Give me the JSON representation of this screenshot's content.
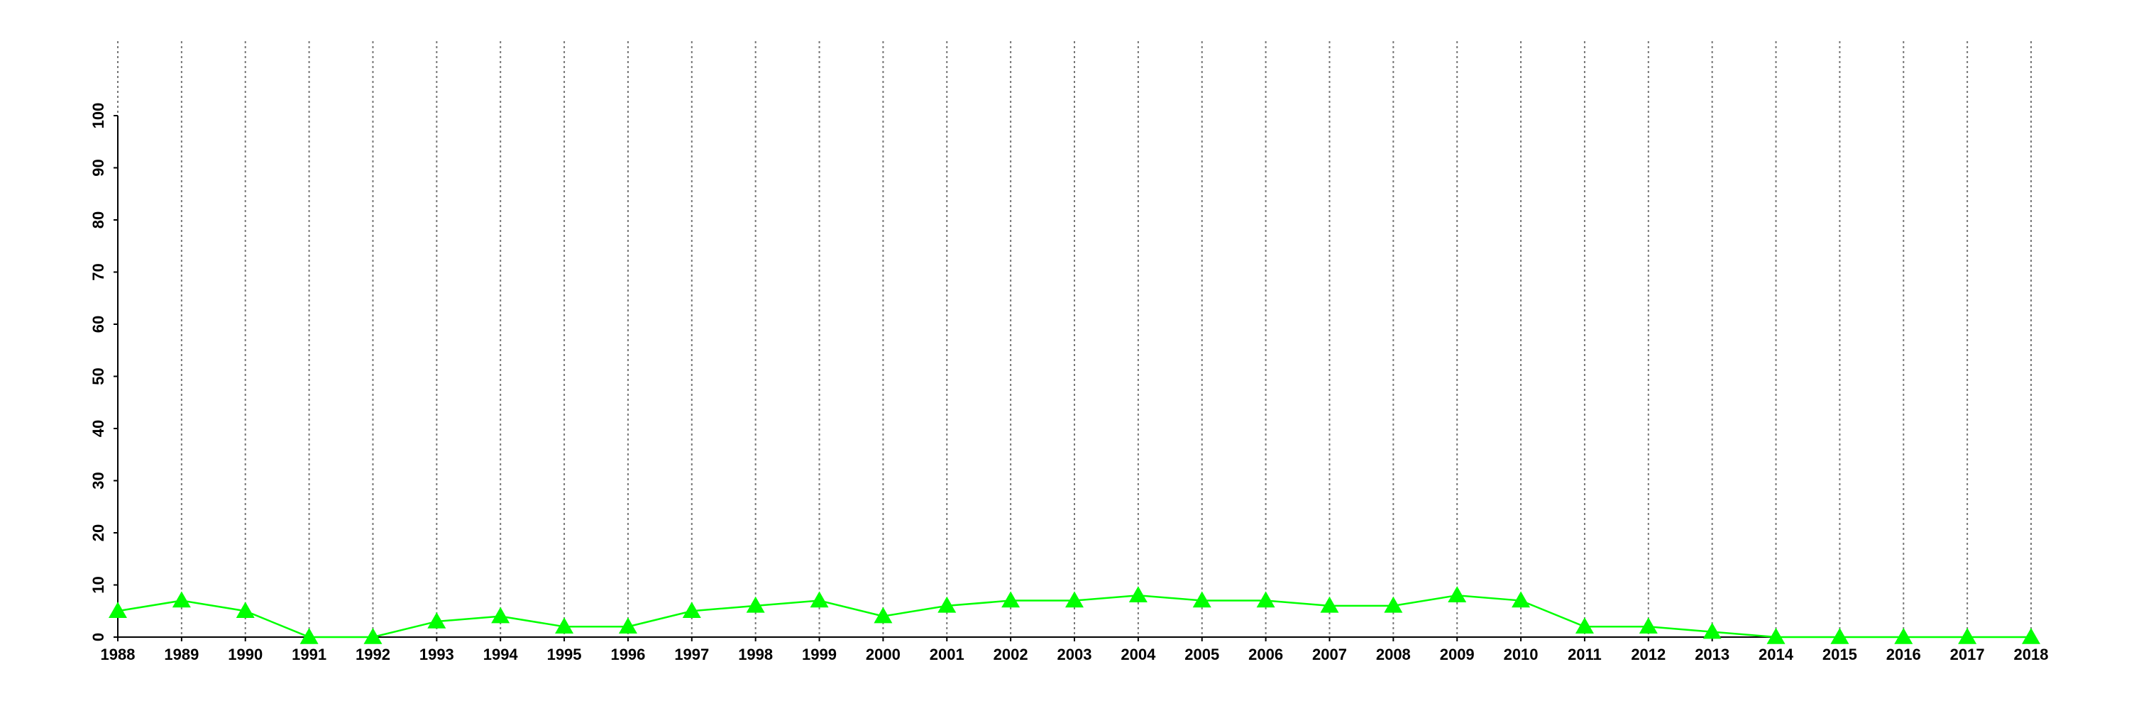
{
  "chart_data": {
    "type": "line",
    "x": [
      1988,
      1989,
      1990,
      1991,
      1992,
      1993,
      1994,
      1995,
      1996,
      1997,
      1998,
      1999,
      2000,
      2001,
      2002,
      2003,
      2004,
      2005,
      2006,
      2007,
      2008,
      2009,
      2010,
      2011,
      2012,
      2013,
      2014,
      2015,
      2016,
      2017,
      2018
    ],
    "series": [
      {
        "color": "#00ff00",
        "marker": "triangle",
        "values": [
          5,
          7,
          5,
          0,
          0,
          3,
          4,
          2,
          2,
          5,
          6,
          7,
          4,
          6,
          7,
          7,
          8,
          7,
          7,
          6,
          6,
          8,
          7,
          2,
          2,
          1,
          0,
          0,
          0,
          0,
          0
        ]
      }
    ],
    "xlim": [
      1988,
      2018
    ],
    "xticks": [
      1988,
      1989,
      1990,
      1991,
      1992,
      1993,
      1994,
      1995,
      1996,
      1997,
      1998,
      1999,
      2000,
      2001,
      2002,
      2003,
      2004,
      2005,
      2006,
      2007,
      2008,
      2009,
      2010,
      2011,
      2012,
      2013,
      2014,
      2015,
      2016,
      2017,
      2018
    ],
    "ylim": [
      0,
      100
    ],
    "yticks": [
      0,
      10,
      20,
      30,
      40,
      50,
      60,
      70,
      80,
      90,
      100
    ],
    "grid": "x"
  }
}
